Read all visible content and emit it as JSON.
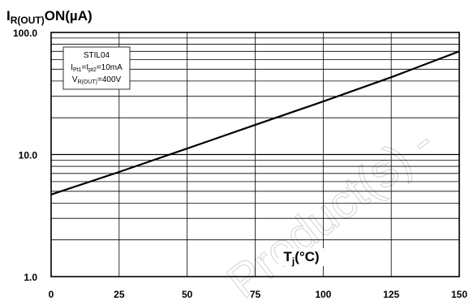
{
  "chart_data": {
    "type": "line",
    "title": "I",
    "title_sub": "R(OUT)",
    "title_tail": "ON(µA)",
    "xlabel": "T",
    "xlabel_sub": "j",
    "xlabel_tail": "(°C)",
    "ylabel": "",
    "yscale": "log",
    "grid": true,
    "xlim": [
      0,
      150
    ],
    "ylim": [
      1,
      100
    ],
    "x_ticks": [
      0,
      25,
      50,
      75,
      100,
      125,
      150
    ],
    "x_tick_labels": [
      "0",
      "25",
      "50",
      "75",
      "100",
      "125",
      "150"
    ],
    "y_ticks": [
      1,
      10,
      100
    ],
    "y_tick_labels": [
      "1.0",
      "10.0",
      "100.0"
    ],
    "series": [
      {
        "x": [
          0,
          25,
          50,
          75,
          100,
          125,
          150
        ],
        "values": [
          4.7,
          7.2,
          11.2,
          17.5,
          27.2,
          43,
          70
        ]
      }
    ],
    "legend": {
      "position": "top-left",
      "device": "STIL04",
      "line2": {
        "a": "I",
        "a_sub": "Pt1",
        "eq": "=",
        "b": "I",
        "b_sub": "pt2",
        "tail": "=10mA"
      },
      "line3": {
        "a": "V",
        "a_sub": "R(OUT)",
        "tail": "=400V"
      }
    }
  },
  "watermark": "Product(s) -",
  "colors": {
    "line": "#000000",
    "grid": "#000000",
    "background": "#ffffff",
    "watermark": "#d9d9d9"
  }
}
